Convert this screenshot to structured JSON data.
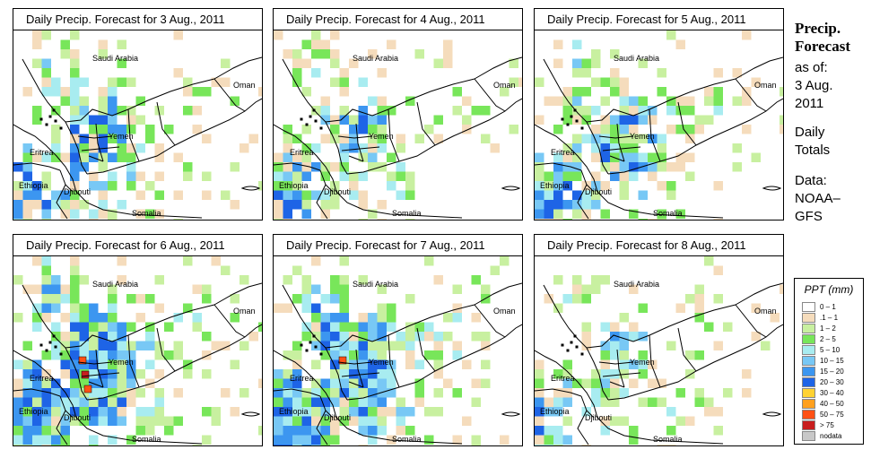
{
  "panels": [
    {
      "title": "Daily Precip. Forecast for  3 Aug., 2011",
      "intensity": 1.0,
      "red_cells": 0,
      "seed": 3
    },
    {
      "title": "Daily Precip. Forecast for  4 Aug., 2011",
      "intensity": 0.9,
      "red_cells": 0,
      "seed": 4
    },
    {
      "title": "Daily Precip. Forecast for  5 Aug., 2011",
      "intensity": 1.1,
      "red_cells": 0,
      "seed": 5
    },
    {
      "title": "Daily Precip. Forecast for  6 Aug., 2011",
      "intensity": 1.5,
      "red_cells": 3,
      "seed": 6
    },
    {
      "title": "Daily Precip. Forecast for  7 Aug., 2011",
      "intensity": 1.4,
      "red_cells": 1,
      "seed": 7
    },
    {
      "title": "Daily Precip. Forecast for  8 Aug., 2011",
      "intensity": 0.8,
      "red_cells": 0,
      "seed": 8
    }
  ],
  "map_labels": {
    "saudi": "Saudi Arabia",
    "oman": "Oman",
    "yemen": "Yemen",
    "eritrea": "Eritrea",
    "ethiopia": "Ethiopia",
    "djibouti": "Djibouti",
    "somalia": "Somalia"
  },
  "side": {
    "title_line1": "Precip.",
    "title_line2": "Forecast",
    "asof": "as of:",
    "date_line1": "3 Aug.",
    "date_line2": "2011",
    "daily_line1": "Daily",
    "daily_line2": "Totals",
    "data_line1": "Data:",
    "data_line2": "NOAA–",
    "data_line3": "GFS"
  },
  "legend": {
    "title": "PPT (mm)",
    "items": [
      {
        "label": "0 – 1",
        "color": "#ffffff"
      },
      {
        "label": ".1 – 1",
        "color": "#f5dcbc"
      },
      {
        "label": "1 – 2",
        "color": "#c8f0a0"
      },
      {
        "label": "2 – 5",
        "color": "#78e65a"
      },
      {
        "label": "5 – 10",
        "color": "#a8ecf0"
      },
      {
        "label": "10 – 15",
        "color": "#78c8f5"
      },
      {
        "label": "15 – 20",
        "color": "#3c96f0"
      },
      {
        "label": "20 – 30",
        "color": "#1e64e6"
      },
      {
        "label": "30 – 40",
        "color": "#ffd232"
      },
      {
        "label": "40 – 50",
        "color": "#ffa01e"
      },
      {
        "label": "50 – 75",
        "color": "#ff5014"
      },
      {
        "label": "> 75",
        "color": "#c81e1e"
      },
      {
        "label": "nodata",
        "color": "#c8c8c8"
      }
    ]
  }
}
